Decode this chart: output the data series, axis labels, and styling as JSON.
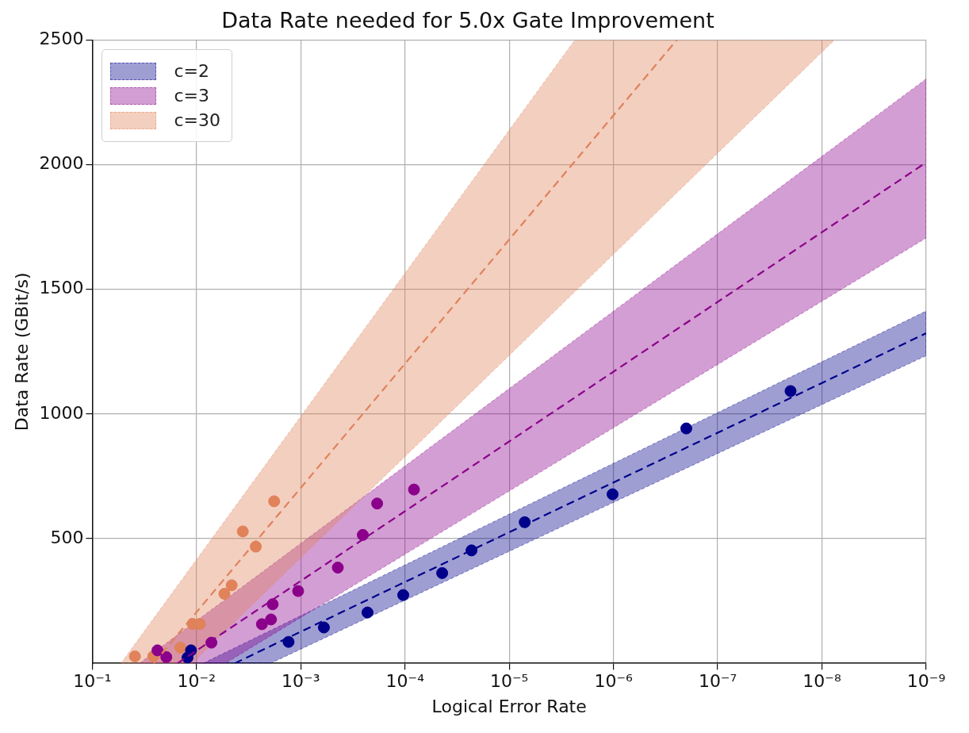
{
  "chart_data": {
    "type": "scatter",
    "title": "Data Rate needed for 5.0x Gate Improvement",
    "xlabel": "Logical Error Rate",
    "ylabel": "Data Rate (GBit/s)",
    "log": "x",
    "grid": true,
    "legend": "top left",
    "xlim": [
      0.1,
      1e-09
    ],
    "xticks": [
      {
        "value": 0.1,
        "label": "10⁻¹"
      },
      {
        "value": 0.01,
        "label": "10⁻²"
      },
      {
        "value": 0.001,
        "label": "10⁻³"
      },
      {
        "value": 0.0001,
        "label": "10⁻⁴"
      },
      {
        "value": 1e-05,
        "label": "10⁻⁵"
      },
      {
        "value": 1e-06,
        "label": "10⁻⁶"
      },
      {
        "value": 1e-07,
        "label": "10⁻⁷"
      },
      {
        "value": 1e-08,
        "label": "10⁻⁸"
      },
      {
        "value": 1e-09,
        "label": "10⁻⁹"
      }
    ],
    "ylim": [
      0,
      2500
    ],
    "yticks": [
      500,
      1000,
      1500,
      2000,
      2500
    ],
    "series": [
      {
        "type": "line",
        "name": "c=2",
        "color": "#00008b",
        "line_style": "dashed",
        "marker": "none",
        "x": [
          0.00867,
          0.0043,
          0.00195,
          1e-09
        ],
        "values": [
          null,
          0,
          69,
          1324
        ],
        "lower": [
          0,
          0,
          0,
          1234
        ],
        "upper": [
          0,
          62,
          132,
          1413
        ]
      },
      {
        "type": "line",
        "name": "c=3",
        "color": "#8b008b",
        "line_style": "dashed",
        "marker": "none",
        "x": [
          0.0354,
          0.01524,
          0.0053,
          1e-09
        ],
        "values": [
          null,
          0,
          128,
          2009
        ],
        "lower": [
          0,
          0,
          0,
          1706
        ],
        "upper": [
          0,
          114,
          256,
          2344
        ]
      },
      {
        "type": "line",
        "name": "c=30",
        "color": "#e0825a",
        "line_style": "dashed",
        "marker": "none",
        "x": [
          0.0531,
          0.0258,
          0.0111,
          2.35e-06,
          2.47e-07,
          7.59e-09
        ],
        "values": [
          null,
          0,
          183,
          2013,
          2500,
          null
        ],
        "lower": [
          0,
          0,
          0,
          1490,
          1887,
          2500
        ],
        "upper": [
          0,
          180,
          390,
          2500,
          2500,
          2500
        ]
      },
      {
        "type": "scatter",
        "color": "#00008b",
        "marker": "circle",
        "x": [
          0.0113,
          0.0122,
          0.00131,
          0.0006,
          0.000229,
          0.000104,
          4.4e-05,
          2.3e-05,
          7.1e-06,
          1.02e-06,
          2e-07,
          2e-08
        ],
        "values": [
          52,
          23,
          86,
          144,
          204,
          274,
          362,
          453,
          566,
          678,
          942,
          1092
        ]
      },
      {
        "type": "scatter",
        "color": "#8b008b",
        "marker": "circle",
        "x": [
          0.0237,
          0.0195,
          0.0072,
          0.00236,
          0.00193,
          0.00186,
          0.00106,
          0.000441,
          0.000254,
          0.000185,
          8.2e-05
        ],
        "values": [
          52,
          25,
          83,
          157,
          176,
          237,
          290,
          384,
          515,
          641,
          697
        ]
      },
      {
        "type": "scatter",
        "color": "#e0825a",
        "marker": "circle",
        "x": [
          0.039,
          0.026,
          0.0143,
          0.0109,
          0.0093,
          0.0054,
          0.0046,
          0.0027,
          0.0036,
          0.0018
        ],
        "values": [
          28,
          28,
          63,
          158,
          158,
          279,
          313,
          468,
          529,
          650
        ]
      }
    ]
  }
}
